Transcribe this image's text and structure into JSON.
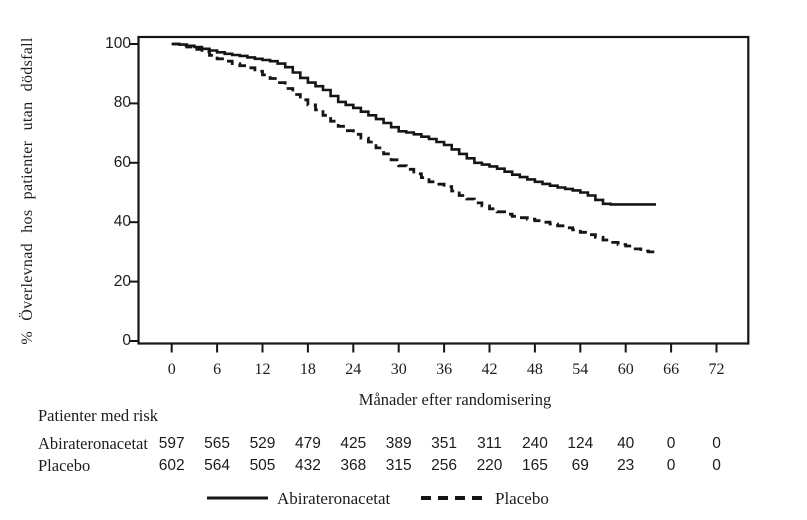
{
  "chart_data": {
    "type": "line",
    "subtype": "kaplan-meier-step",
    "title": "",
    "xlabel": "Månader efter randomisering",
    "ylabel": "% Överlevnad hos patienter utan dödsfall",
    "x_axis": {
      "ticks": [
        0,
        6,
        12,
        18,
        24,
        30,
        36,
        42,
        48,
        54,
        60,
        66,
        72
      ],
      "range": [
        0,
        72
      ]
    },
    "y_axis": {
      "ticks": [
        0,
        20,
        40,
        60,
        80,
        100
      ],
      "range": [
        0,
        100
      ],
      "unit": "%"
    },
    "grid": false,
    "legend_position": "bottom",
    "series": [
      {
        "name": "Abirateronacetat",
        "style": "solid",
        "points": [
          [
            0,
            100
          ],
          [
            1,
            99.8
          ],
          [
            2,
            99.4
          ],
          [
            3,
            99
          ],
          [
            4,
            98.4
          ],
          [
            5,
            97.8
          ],
          [
            6,
            97.2
          ],
          [
            7,
            96.7
          ],
          [
            8,
            96.3
          ],
          [
            9,
            96
          ],
          [
            10,
            95.5
          ],
          [
            11,
            95
          ],
          [
            12,
            94.6
          ],
          [
            13,
            94.2
          ],
          [
            14,
            93.4
          ],
          [
            15,
            92.2
          ],
          [
            16,
            90.4
          ],
          [
            17,
            88.6
          ],
          [
            18,
            87
          ],
          [
            19,
            85.8
          ],
          [
            20,
            84.5
          ],
          [
            21,
            82.5
          ],
          [
            22,
            80.5
          ],
          [
            23,
            79.5
          ],
          [
            24,
            78.5
          ],
          [
            25,
            77.2
          ],
          [
            26,
            76
          ],
          [
            27,
            74.7
          ],
          [
            28,
            73.4
          ],
          [
            29,
            72
          ],
          [
            30,
            70.6
          ],
          [
            31,
            70.2
          ],
          [
            32,
            69.6
          ],
          [
            33,
            68.8
          ],
          [
            34,
            68
          ],
          [
            35,
            67
          ],
          [
            36,
            66
          ],
          [
            37,
            64.5
          ],
          [
            38,
            63
          ],
          [
            39,
            61.5
          ],
          [
            40,
            60
          ],
          [
            41,
            59.4
          ],
          [
            42,
            58.8
          ],
          [
            43,
            58
          ],
          [
            44,
            57
          ],
          [
            45,
            56
          ],
          [
            46,
            55.2
          ],
          [
            47,
            54.4
          ],
          [
            48,
            53.6
          ],
          [
            49,
            52.9
          ],
          [
            50,
            52.3
          ],
          [
            51,
            51.7
          ],
          [
            52,
            51.2
          ],
          [
            53,
            50.7
          ],
          [
            54,
            50
          ],
          [
            55,
            49
          ],
          [
            56,
            47.5
          ],
          [
            57,
            46.2
          ],
          [
            58,
            46
          ],
          [
            64,
            46
          ]
        ]
      },
      {
        "name": "Placebo",
        "style": "dashed",
        "points": [
          [
            0,
            100
          ],
          [
            1,
            99.5
          ],
          [
            2,
            99
          ],
          [
            3,
            98.2
          ],
          [
            4,
            97.4
          ],
          [
            5,
            96.2
          ],
          [
            6,
            95
          ],
          [
            7,
            94.2
          ],
          [
            8,
            93.4
          ],
          [
            9,
            92.7
          ],
          [
            10,
            92
          ],
          [
            11,
            90.8
          ],
          [
            12,
            89.6
          ],
          [
            13,
            88.4
          ],
          [
            14,
            87
          ],
          [
            15,
            85
          ],
          [
            16,
            83
          ],
          [
            17,
            81.2
          ],
          [
            18,
            79.5
          ],
          [
            19,
            77.8
          ],
          [
            20,
            76
          ],
          [
            21,
            74
          ],
          [
            22,
            72.3
          ],
          [
            23,
            70.8
          ],
          [
            24,
            69.6
          ],
          [
            25,
            68.3
          ],
          [
            26,
            67
          ],
          [
            27,
            65
          ],
          [
            28,
            63
          ],
          [
            29,
            61
          ],
          [
            30,
            59
          ],
          [
            31,
            57.8
          ],
          [
            32,
            56.3
          ],
          [
            33,
            55
          ],
          [
            34,
            53.6
          ],
          [
            35,
            52.8
          ],
          [
            36,
            52
          ],
          [
            37,
            50.5
          ],
          [
            38,
            49
          ],
          [
            39,
            47.8
          ],
          [
            40,
            46.5
          ],
          [
            41,
            45.5
          ],
          [
            42,
            44.5
          ],
          [
            43,
            43.5
          ],
          [
            44,
            42.7
          ],
          [
            45,
            42
          ],
          [
            46,
            41.5
          ],
          [
            47,
            41
          ],
          [
            48,
            40.5
          ],
          [
            49,
            40
          ],
          [
            50,
            39.4
          ],
          [
            51,
            38.8
          ],
          [
            52,
            38.1
          ],
          [
            53,
            37.4
          ],
          [
            54,
            36.6
          ],
          [
            55,
            35.8
          ],
          [
            56,
            34.9
          ],
          [
            57,
            34
          ],
          [
            58,
            33.2
          ],
          [
            59,
            32.5
          ],
          [
            60,
            32
          ],
          [
            61,
            31
          ],
          [
            62,
            30.3
          ],
          [
            63,
            30
          ],
          [
            64.5,
            30
          ]
        ]
      }
    ]
  },
  "risk_table": {
    "title": "Patienter med risk",
    "rows": [
      {
        "label": "Abirateronacetat",
        "values": [
          597,
          565,
          529,
          479,
          425,
          389,
          351,
          311,
          240,
          124,
          40,
          0,
          0
        ]
      },
      {
        "label": "Placebo",
        "values": [
          602,
          564,
          505,
          432,
          368,
          315,
          256,
          220,
          165,
          69,
          23,
          0,
          0
        ]
      }
    ]
  },
  "legend": {
    "items": [
      {
        "label": "Abirateronacetat",
        "style": "solid"
      },
      {
        "label": "Placebo",
        "style": "dashed"
      }
    ]
  },
  "colors": {
    "line": "#151515",
    "text": "#1c1c1c",
    "background": "#ffffff"
  }
}
